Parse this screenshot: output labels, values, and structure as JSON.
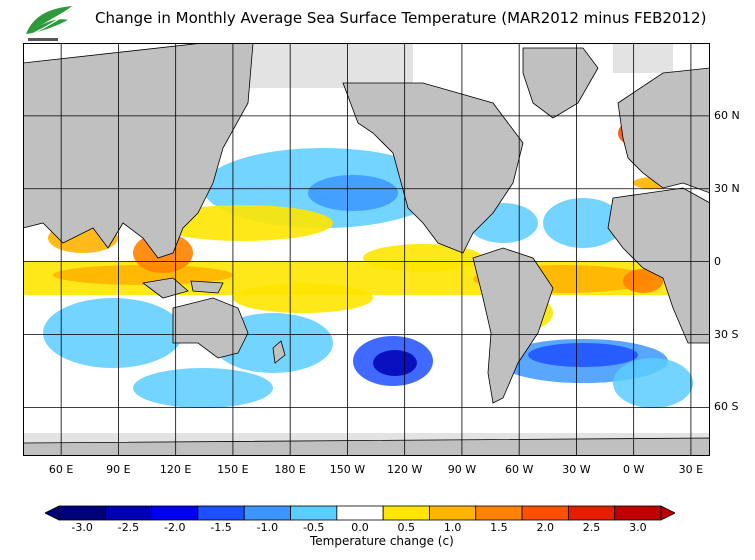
{
  "title": "Change in Monthly Average Sea Surface Temperature (MAR2012 minus FEB2012)",
  "logo": {
    "icon": "leaf-logo-icon",
    "color": "#2e9a3c"
  },
  "latitude_labels": [
    {
      "label": "60 N",
      "lat": 60
    },
    {
      "label": "30 N",
      "lat": 30
    },
    {
      "label": "0",
      "lat": 0
    },
    {
      "label": "30 S",
      "lat": -30
    },
    {
      "label": "60 S",
      "lat": -60
    }
  ],
  "longitude_labels": [
    {
      "label": "60 E",
      "lon": 60
    },
    {
      "label": "90 E",
      "lon": 90
    },
    {
      "label": "120 E",
      "lon": 120
    },
    {
      "label": "150 E",
      "lon": 150
    },
    {
      "label": "180 E",
      "lon": 180
    },
    {
      "label": "150 W",
      "lon": 210
    },
    {
      "label": "120 W",
      "lon": 240
    },
    {
      "label": "90 W",
      "lon": 270
    },
    {
      "label": "60 W",
      "lon": 300
    },
    {
      "label": "30 W",
      "lon": 330
    },
    {
      "label": "0 W",
      "lon": 360
    },
    {
      "label": "30 E",
      "lon": 390
    }
  ],
  "map_extent": {
    "lon_min": 40,
    "lon_max": 400,
    "lat_min": -80,
    "lat_max": 90
  },
  "legend": {
    "label": "Temperature change  (c)",
    "ticks": [
      "-3.0",
      "-2.5",
      "-2.0",
      "-1.5",
      "-1.0",
      "-0.5",
      "0.0",
      "0.5",
      "1.0",
      "1.5",
      "2.0",
      "2.5",
      "3.0"
    ],
    "colors": [
      "#00007d",
      "#0000b4",
      "#0000f0",
      "#1e50ff",
      "#3c96ff",
      "#5acdff",
      "#ffffff",
      "#ffe600",
      "#ffb400",
      "#ff8200",
      "#ff5000",
      "#e61e00",
      "#be0000"
    ]
  },
  "colors": {
    "land": "#c0c0c0",
    "ice": "#e3e3e3",
    "grid": "#000000"
  }
}
